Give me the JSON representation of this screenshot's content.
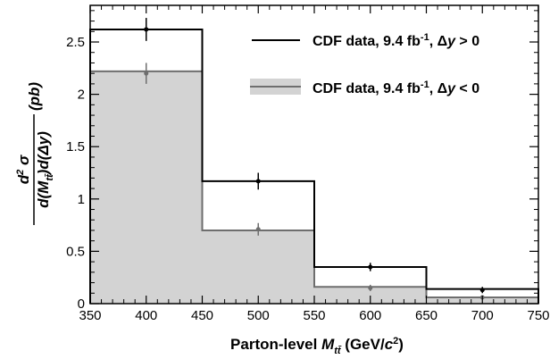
{
  "chart_data": {
    "type": "bar",
    "bins": [
      [
        350,
        450
      ],
      [
        450,
        550
      ],
      [
        550,
        650
      ],
      [
        650,
        750
      ]
    ],
    "series": [
      {
        "name": "CDF data, 9.4 fb⁻¹, Δy > 0",
        "style": "outline",
        "color": "#000000",
        "values": [
          2.62,
          1.17,
          0.35,
          0.14
        ],
        "errors": [
          0.11,
          0.08,
          0.04,
          0.03
        ],
        "markers_x": [
          400,
          500,
          600,
          700
        ],
        "markers_y": [
          2.62,
          1.17,
          0.35,
          0.13
        ]
      },
      {
        "name": "CDF data, 9.4 fb⁻¹, Δy < 0",
        "style": "filled",
        "color": "#6e6e6e",
        "fill": "#d3d3d3",
        "values": [
          2.22,
          0.7,
          0.16,
          0.06
        ],
        "errors": [
          0.1,
          0.06,
          0.03,
          0.02
        ],
        "markers_x": [
          400,
          500,
          600,
          700
        ],
        "markers_y": [
          2.2,
          0.71,
          0.15,
          0.06
        ]
      }
    ],
    "xlim": [
      350,
      750
    ],
    "ylim": [
      0,
      2.85
    ],
    "xticks": [
      "350",
      "400",
      "450",
      "500",
      "550",
      "600",
      "650",
      "700",
      "750"
    ],
    "yticks": [
      "0",
      "0.5",
      "1",
      "1.5",
      "2",
      "2.5"
    ],
    "xlabel": "Parton-level M_tt̄ (GeV/c²)",
    "ylabel": "d²σ / d(M_tt̄)d(Δy) (pb)",
    "legend": "top-right",
    "grid": false
  }
}
